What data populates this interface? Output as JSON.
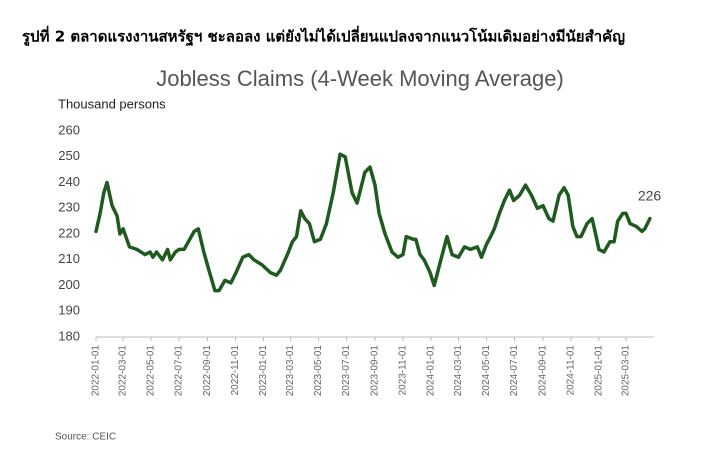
{
  "figure_caption": "รูปที่ 2 ตลาดแรงงานสหรัฐฯ ชะลอลง แต่ยังไม่ได้เปลี่ยนแปลงจากแนวโน้มเดิมอย่างมีนัยสำคัญ",
  "source": "Source: CEIC",
  "chart_data": {
    "type": "line",
    "title": "Jobless Claims (4-Week Moving Average)",
    "y_label": "Thousand persons",
    "color": "#1f5a1f",
    "x": [
      "2022-01-01",
      "2022-01-10",
      "2022-01-18",
      "2022-01-25",
      "2022-02-05",
      "2022-02-16",
      "2022-02-22",
      "2022-03-01",
      "2022-03-15",
      "2022-03-31",
      "2022-04-18",
      "2022-04-29",
      "2022-05-05",
      "2022-05-13",
      "2022-05-26",
      "2022-06-06",
      "2022-06-12",
      "2022-06-23",
      "2022-07-01",
      "2022-07-12",
      "2022-08-03",
      "2022-08-12",
      "2022-08-24",
      "2022-09-04",
      "2022-09-17",
      "2022-09-26",
      "2022-10-09",
      "2022-10-22",
      "2022-11-02",
      "2022-11-17",
      "2022-11-30",
      "2022-12-11",
      "2022-12-29",
      "2023-01-16",
      "2023-01-29",
      "2023-02-07",
      "2023-02-22",
      "2023-03-05",
      "2023-03-14",
      "2023-03-23",
      "2023-04-01",
      "2023-04-11",
      "2023-04-22",
      "2023-05-05",
      "2023-05-18",
      "2023-06-02",
      "2023-06-17",
      "2023-06-28",
      "2023-07-13",
      "2023-07-24",
      "2023-08-10",
      "2023-08-21",
      "2023-09-01",
      "2023-09-10",
      "2023-09-23",
      "2023-10-08",
      "2023-10-21",
      "2023-11-01",
      "2023-11-08",
      "2023-11-23",
      "2023-11-29",
      "2023-12-08",
      "2023-12-17",
      "2023-12-30",
      "2024-01-08",
      "2024-01-21",
      "2024-02-05",
      "2024-02-16",
      "2024-03-01",
      "2024-03-14",
      "2024-03-27",
      "2024-04-11",
      "2024-04-20",
      "2024-05-01",
      "2024-05-10",
      "2024-05-18",
      "2024-05-29",
      "2024-06-09",
      "2024-06-20",
      "2024-06-29",
      "2024-07-12",
      "2024-07-25",
      "2024-08-07",
      "2024-08-20",
      "2024-09-01",
      "2024-09-14",
      "2024-09-23",
      "2024-10-06",
      "2024-10-17",
      "2024-10-26",
      "2024-11-05",
      "2024-11-14",
      "2024-11-23",
      "2024-12-06",
      "2024-12-17",
      "2024-12-26",
      "2025-01-01",
      "2025-01-12",
      "2025-01-25",
      "2025-02-03",
      "2025-02-11",
      "2025-02-22",
      "2025-03-01",
      "2025-03-10",
      "2025-03-23",
      "2025-04-05",
      "2025-04-11",
      "2025-04-22"
    ],
    "values": [
      221,
      228,
      236,
      240,
      231,
      227,
      220,
      222,
      215,
      214,
      212,
      213,
      211,
      213,
      210,
      214,
      210,
      213,
      214,
      214,
      221,
      222,
      213,
      206,
      198,
      198,
      202,
      201,
      205,
      211,
      212,
      210,
      208,
      205,
      204,
      206,
      212,
      217,
      219,
      229,
      226,
      224,
      217,
      218,
      224,
      236,
      251,
      250,
      236,
      232,
      244,
      246,
      239,
      228,
      220,
      213,
      211,
      212,
      219,
      218,
      218,
      212,
      210,
      205,
      200,
      209,
      219,
      212,
      211,
      215,
      214,
      215,
      211,
      216,
      219,
      222,
      228,
      233,
      237,
      233,
      235,
      239,
      235,
      230,
      231,
      226,
      225,
      235,
      238,
      235,
      223,
      219,
      219,
      224,
      226,
      219,
      214,
      213,
      217,
      217,
      225,
      228,
      228,
      224,
      223,
      221,
      222,
      226
    ],
    "xlim": [
      "2022-01-01",
      "2025-05-01"
    ],
    "xticks": [
      "2022-01-01",
      "2022-03-01",
      "2022-05-01",
      "2022-07-01",
      "2022-09-01",
      "2022-11-01",
      "2023-01-01",
      "2023-03-01",
      "2023-05-01",
      "2023-07-01",
      "2023-09-01",
      "2023-11-01",
      "2024-01-01",
      "2024-03-01",
      "2024-05-01",
      "2024-07-01",
      "2024-09-01",
      "2024-11-01",
      "2025-01-01",
      "2025-03-01"
    ],
    "ylim": [
      180,
      260
    ],
    "yticks": [
      180,
      190,
      200,
      210,
      220,
      230,
      240,
      250,
      260
    ],
    "grid": false
  }
}
